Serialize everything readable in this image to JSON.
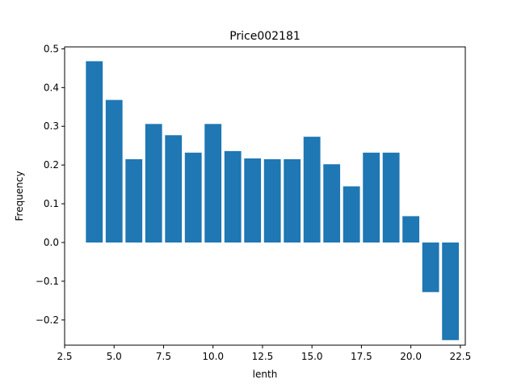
{
  "chart_data": {
    "type": "bar",
    "title": "Price002181",
    "xlabel": "lenth",
    "ylabel": "Frequency",
    "xlim": [
      2.5,
      22.75
    ],
    "ylim": [
      -0.265,
      0.505
    ],
    "bar_color": "#1f77b4",
    "bar_width": 0.85,
    "x": [
      4,
      5,
      6,
      7,
      8,
      9,
      10,
      11,
      12,
      13,
      14,
      15,
      16,
      17,
      18,
      19,
      20,
      21,
      22
    ],
    "values": [
      0.468,
      0.368,
      0.215,
      0.306,
      0.277,
      0.232,
      0.306,
      0.236,
      0.217,
      0.215,
      0.215,
      0.273,
      0.202,
      0.145,
      0.232,
      0.232,
      0.068,
      -0.128,
      -0.252
    ],
    "x_ticks": [
      2.5,
      5.0,
      7.5,
      10.0,
      12.5,
      15.0,
      17.5,
      20.0,
      22.5
    ],
    "x_tick_labels": [
      "2.5",
      "5.0",
      "7.5",
      "10.0",
      "12.5",
      "15.0",
      "17.5",
      "20.0",
      "22.5"
    ],
    "y_ticks": [
      -0.2,
      -0.1,
      0.0,
      0.1,
      0.2,
      0.3,
      0.4,
      0.5
    ],
    "y_tick_labels": [
      "−0.2",
      "−0.1",
      "0.0",
      "0.1",
      "0.2",
      "0.3",
      "0.4",
      "0.5"
    ],
    "grid": false,
    "legend": "none"
  }
}
